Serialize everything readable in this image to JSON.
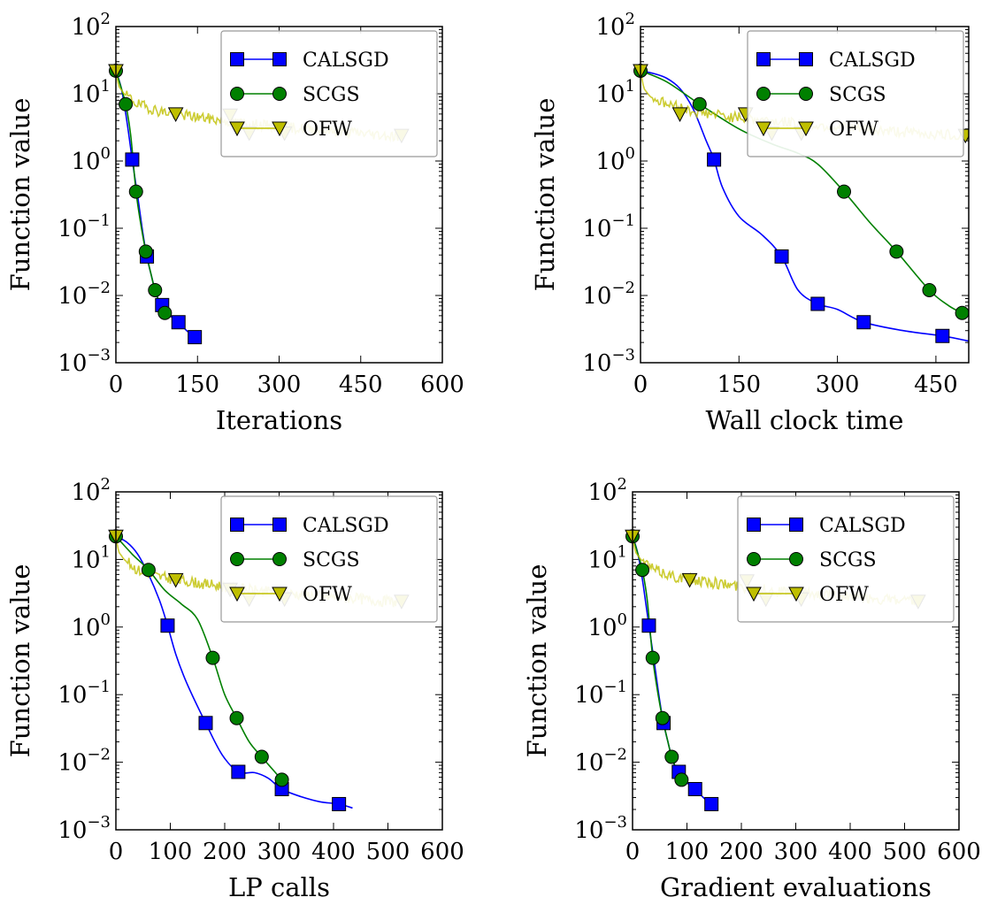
{
  "chart_data": [
    {
      "type": "line",
      "xlabel": "Iterations",
      "ylabel": "Function value",
      "xlim": [
        0,
        600
      ],
      "ylim": [
        0.001,
        100
      ],
      "yscale": "log",
      "xticks": [
        0,
        150,
        300,
        450,
        600
      ],
      "yticks": [
        0.001,
        0.01,
        0.1,
        1,
        10,
        100
      ],
      "ytick_labels": [
        {
          "base": "10",
          "exp": "−3"
        },
        {
          "base": "10",
          "exp": "−2"
        },
        {
          "base": "10",
          "exp": "−1"
        },
        {
          "base": "10",
          "exp": "0"
        },
        {
          "base": "10",
          "exp": "1"
        },
        {
          "base": "10",
          "exp": "2"
        }
      ],
      "legend_position": "top-right",
      "series": [
        {
          "name": "CALSGD",
          "color": "#0000ff",
          "marker": "square",
          "x": [
            0,
            10,
            20,
            30,
            40,
            50,
            57,
            65,
            75,
            85,
            100,
            115,
            130,
            145
          ],
          "y": [
            22,
            12,
            4,
            1.05,
            0.3,
            0.08,
            0.038,
            0.02,
            0.01,
            0.0072,
            0.005,
            0.004,
            0.003,
            0.0024
          ],
          "marker_x": [
            30,
            57,
            85,
            115,
            145
          ],
          "marker_y": [
            1.05,
            0.038,
            0.0072,
            0.004,
            0.0024
          ]
        },
        {
          "name": "SCGS",
          "color": "#008000",
          "marker": "circle",
          "x": [
            0,
            10,
            18,
            27,
            37,
            47,
            55,
            65,
            72,
            80,
            90
          ],
          "y": [
            22,
            12,
            7,
            2.5,
            0.35,
            0.1,
            0.045,
            0.02,
            0.012,
            0.008,
            0.0055
          ],
          "marker_x": [
            0,
            18,
            37,
            55,
            72,
            90
          ],
          "marker_y": [
            22,
            7,
            0.35,
            0.045,
            0.012,
            0.0055
          ]
        },
        {
          "name": "OFW",
          "color": "#bfbf00",
          "marker": "triangle-down",
          "noisy": true,
          "x": [
            0,
            5,
            15,
            40,
            80,
            150,
            250,
            350,
            450,
            525
          ],
          "y": [
            22,
            13,
            10,
            7,
            5.5,
            4.5,
            3.5,
            3,
            2.6,
            2.3
          ],
          "marker_x": [
            0,
            110,
            210,
            245,
            310,
            525
          ],
          "marker_y": [
            22,
            5,
            4.8,
            2.6,
            2.6,
            2.4
          ]
        }
      ]
    },
    {
      "type": "line",
      "xlabel": "Wall clock time",
      "ylabel": "Function value",
      "xlim": [
        0,
        500
      ],
      "ylim": [
        0.001,
        100
      ],
      "yscale": "log",
      "xticks": [
        0,
        150,
        300,
        450
      ],
      "yticks": [
        0.001,
        0.01,
        0.1,
        1,
        10,
        100
      ],
      "ytick_labels": [
        {
          "base": "10",
          "exp": "−3"
        },
        {
          "base": "10",
          "exp": "−2"
        },
        {
          "base": "10",
          "exp": "−1"
        },
        {
          "base": "10",
          "exp": "0"
        },
        {
          "base": "10",
          "exp": "1"
        },
        {
          "base": "10",
          "exp": "2"
        }
      ],
      "legend_position": "top-right",
      "series": [
        {
          "name": "CALSGD",
          "color": "#0000ff",
          "marker": "square",
          "x": [
            0,
            20,
            40,
            60,
            80,
            100,
            112,
            125,
            150,
            185,
            215,
            240,
            270,
            300,
            340,
            400,
            460,
            500
          ],
          "y": [
            22,
            20,
            17,
            12,
            6,
            2,
            1.05,
            0.4,
            0.15,
            0.08,
            0.038,
            0.012,
            0.0075,
            0.0062,
            0.004,
            0.003,
            0.0025,
            0.0021
          ],
          "marker_x": [
            112,
            215,
            270,
            340,
            460
          ],
          "marker_y": [
            1.05,
            0.038,
            0.0075,
            0.004,
            0.0025
          ]
        },
        {
          "name": "SCGS",
          "color": "#008000",
          "marker": "circle",
          "x": [
            0,
            40,
            90,
            150,
            200,
            240,
            270,
            310,
            350,
            390,
            440,
            470,
            490
          ],
          "y": [
            22,
            15,
            7,
            3,
            1.8,
            1.3,
            0.9,
            0.35,
            0.12,
            0.045,
            0.012,
            0.007,
            0.0055
          ],
          "marker_x": [
            0,
            90,
            310,
            390,
            440,
            490
          ],
          "marker_y": [
            22,
            7,
            0.35,
            0.045,
            0.012,
            0.0055
          ]
        },
        {
          "name": "OFW",
          "color": "#bfbf00",
          "marker": "triangle-down",
          "noisy": true,
          "x": [
            0,
            5,
            15,
            40,
            80,
            140,
            220,
            300,
            380,
            450,
            500
          ],
          "y": [
            22,
            12,
            9,
            7,
            5.5,
            4.5,
            3.8,
            3.2,
            2.8,
            2.5,
            2.4
          ],
          "marker_x": [
            0,
            60,
            160,
            200,
            245,
            495
          ],
          "marker_y": [
            22,
            5,
            5,
            2.6,
            2.6,
            2.4
          ]
        }
      ]
    },
    {
      "type": "line",
      "xlabel": "LP calls",
      "ylabel": "Function value",
      "xlim": [
        0,
        600
      ],
      "ylim": [
        0.001,
        100
      ],
      "yscale": "log",
      "xticks": [
        0,
        100,
        200,
        300,
        400,
        500,
        600
      ],
      "yticks": [
        0.001,
        0.01,
        0.1,
        1,
        10,
        100
      ],
      "ytick_labels": [
        {
          "base": "10",
          "exp": "−3"
        },
        {
          "base": "10",
          "exp": "−2"
        },
        {
          "base": "10",
          "exp": "−1"
        },
        {
          "base": "10",
          "exp": "0"
        },
        {
          "base": "10",
          "exp": "1"
        },
        {
          "base": "10",
          "exp": "2"
        }
      ],
      "legend_position": "top-right",
      "series": [
        {
          "name": "CALSGD",
          "color": "#0000ff",
          "marker": "square",
          "x": [
            0,
            20,
            40,
            60,
            80,
            95,
            110,
            130,
            165,
            195,
            225,
            255,
            280,
            305,
            340,
            375,
            410,
            435
          ],
          "y": [
            22,
            18,
            12,
            6,
            2.5,
            1.05,
            0.4,
            0.15,
            0.038,
            0.013,
            0.0072,
            0.007,
            0.0058,
            0.004,
            0.0031,
            0.0026,
            0.0024,
            0.0021
          ],
          "marker_x": [
            95,
            165,
            225,
            305,
            410
          ],
          "marker_y": [
            1.05,
            0.038,
            0.0072,
            0.004,
            0.0024
          ]
        },
        {
          "name": "SCGS",
          "color": "#008000",
          "marker": "circle",
          "x": [
            0,
            30,
            60,
            90,
            120,
            150,
            178,
            200,
            222,
            245,
            268,
            290,
            305
          ],
          "y": [
            22,
            12,
            7,
            3.5,
            2.2,
            1.3,
            0.35,
            0.1,
            0.045,
            0.02,
            0.012,
            0.0075,
            0.0055
          ],
          "marker_x": [
            0,
            60,
            178,
            222,
            268,
            305
          ],
          "marker_y": [
            22,
            7,
            0.35,
            0.045,
            0.012,
            0.0055
          ]
        },
        {
          "name": "OFW",
          "color": "#bfbf00",
          "marker": "triangle-down",
          "noisy": true,
          "x": [
            0,
            5,
            15,
            40,
            80,
            150,
            250,
            350,
            450,
            525
          ],
          "y": [
            22,
            13,
            10,
            7,
            5.5,
            4.5,
            3.5,
            3,
            2.6,
            2.3
          ],
          "marker_x": [
            0,
            110,
            210,
            245,
            310,
            525
          ],
          "marker_y": [
            22,
            5,
            3.6,
            2.6,
            2.6,
            2.4
          ]
        }
      ]
    },
    {
      "type": "line",
      "xlabel": "Gradient evaluations",
      "ylabel": "Function value",
      "xlim": [
        0,
        600
      ],
      "ylim": [
        0.001,
        100
      ],
      "yscale": "log",
      "xticks": [
        0,
        100,
        200,
        300,
        400,
        500,
        600
      ],
      "yticks": [
        0.001,
        0.01,
        0.1,
        1,
        10,
        100
      ],
      "ytick_labels": [
        {
          "base": "10",
          "exp": "−3"
        },
        {
          "base": "10",
          "exp": "−2"
        },
        {
          "base": "10",
          "exp": "−1"
        },
        {
          "base": "10",
          "exp": "0"
        },
        {
          "base": "10",
          "exp": "1"
        },
        {
          "base": "10",
          "exp": "2"
        }
      ],
      "legend_position": "top-right",
      "series": [
        {
          "name": "CALSGD",
          "color": "#0000ff",
          "marker": "square",
          "x": [
            0,
            10,
            20,
            30,
            40,
            50,
            57,
            65,
            75,
            85,
            100,
            115,
            130,
            145
          ],
          "y": [
            22,
            12,
            4,
            1.05,
            0.3,
            0.08,
            0.038,
            0.02,
            0.01,
            0.0072,
            0.005,
            0.004,
            0.003,
            0.0024
          ],
          "marker_x": [
            30,
            57,
            85,
            115,
            145
          ],
          "marker_y": [
            1.05,
            0.038,
            0.0072,
            0.004,
            0.0024
          ]
        },
        {
          "name": "SCGS",
          "color": "#008000",
          "marker": "circle",
          "x": [
            0,
            10,
            18,
            27,
            37,
            47,
            55,
            65,
            72,
            80,
            90
          ],
          "y": [
            22,
            12,
            7,
            2.5,
            0.35,
            0.1,
            0.045,
            0.02,
            0.012,
            0.008,
            0.0055
          ],
          "marker_x": [
            0,
            18,
            37,
            55,
            72,
            90
          ],
          "marker_y": [
            22,
            7,
            0.35,
            0.045,
            0.012,
            0.0055
          ]
        },
        {
          "name": "OFW",
          "color": "#bfbf00",
          "marker": "triangle-down",
          "noisy": true,
          "x": [
            0,
            5,
            15,
            40,
            80,
            150,
            250,
            350,
            450,
            525
          ],
          "y": [
            22,
            13,
            10,
            7,
            5.5,
            4.5,
            3.5,
            3,
            2.6,
            2.3
          ],
          "marker_x": [
            0,
            105,
            210,
            245,
            310,
            525
          ],
          "marker_y": [
            22,
            5,
            4.8,
            2.6,
            2.6,
            2.4
          ]
        }
      ]
    }
  ]
}
